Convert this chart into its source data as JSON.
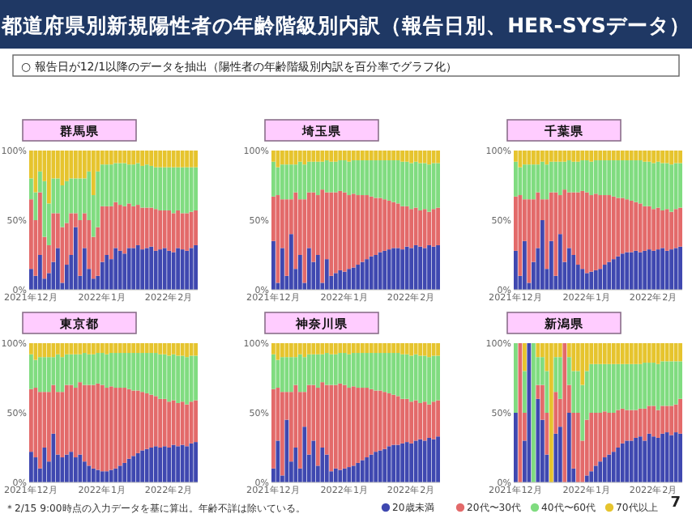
{
  "chart_data": [
    {
      "type": "other",
      "title": "都道府県別新規陽性者の年齢階級別内訳（報告日別、HER-SYSデータ）",
      "subtitle": "○ 報告日が12/1以降のデータを抽出（陽性者の年齢階級別内訳を百分率でグラフ化）",
      "annotations": [
        "＊2/15 9:00時点の入力データを基に算出。年齢不詳は除いている。",
        "7"
      ]
    },
    {
      "type": "bar",
      "title": "群馬県",
      "stacked": true,
      "ylim": [
        0,
        100
      ],
      "yticks": [
        {
          "value": 0,
          "label": "0%"
        },
        {
          "value": 50,
          "label": "50%"
        },
        {
          "value": 100,
          "label": "100%"
        }
      ],
      "categories": [
        "2021年12月",
        null,
        null,
        null,
        null,
        null,
        null,
        null,
        null,
        null,
        null,
        null,
        null,
        null,
        null,
        null,
        "2022年1月",
        null,
        null,
        null,
        null,
        null,
        null,
        null,
        null,
        null,
        null,
        null,
        null,
        null,
        null,
        "2022年2月",
        null,
        null,
        null,
        null,
        null,
        null
      ],
      "series": [
        {
          "color": "#3f48b0",
          "values": [
            15,
            10,
            25,
            8,
            12,
            20,
            30,
            5,
            18,
            25,
            45,
            10,
            30,
            15,
            8,
            10,
            20,
            25,
            22,
            30,
            28,
            26,
            30,
            30,
            32,
            29,
            30,
            31,
            28,
            29,
            30,
            28,
            27,
            30,
            29,
            28,
            30,
            32
          ]
        },
        {
          "color": "#e36a6a",
          "values": [
            50,
            40,
            45,
            30,
            20,
            35,
            25,
            40,
            30,
            30,
            10,
            40,
            25,
            35,
            30,
            35,
            40,
            35,
            38,
            33,
            33,
            34,
            32,
            30,
            29,
            30,
            29,
            28,
            30,
            28,
            27,
            29,
            28,
            27,
            26,
            27,
            26,
            25
          ]
        },
        {
          "color": "#80dc80",
          "values": [
            15,
            20,
            15,
            40,
            30,
            25,
            25,
            30,
            30,
            25,
            25,
            30,
            25,
            35,
            30,
            40,
            30,
            30,
            30,
            28,
            30,
            31,
            28,
            30,
            30,
            30,
            31,
            30,
            30,
            31,
            31,
            31,
            33,
            31,
            33,
            33,
            32,
            31
          ]
        },
        {
          "color": "#e6c42e",
          "values": [
            20,
            30,
            15,
            22,
            38,
            20,
            20,
            25,
            22,
            20,
            20,
            20,
            20,
            15,
            32,
            15,
            10,
            10,
            10,
            9,
            9,
            9,
            10,
            10,
            9,
            11,
            10,
            11,
            12,
            12,
            12,
            12,
            12,
            12,
            12,
            12,
            12,
            12
          ]
        }
      ]
    },
    {
      "type": "bar",
      "title": "埼玉県",
      "stacked": true,
      "ylim": [
        0,
        100
      ],
      "yticks": [
        {
          "value": 0,
          "label": "0%"
        },
        {
          "value": 50,
          "label": "50%"
        },
        {
          "value": 100,
          "label": "100%"
        }
      ],
      "categories": [
        "2021年12月",
        null,
        null,
        null,
        null,
        null,
        null,
        null,
        null,
        null,
        null,
        null,
        null,
        null,
        null,
        null,
        "2022年1月",
        null,
        null,
        null,
        null,
        null,
        null,
        null,
        null,
        null,
        null,
        null,
        null,
        null,
        null,
        "2022年2月",
        null,
        null,
        null,
        null,
        null,
        null
      ],
      "series": [
        {
          "color": "#3f48b0",
          "values": [
            35,
            5,
            30,
            10,
            40,
            15,
            25,
            5,
            30,
            20,
            25,
            5,
            22,
            10,
            12,
            14,
            13,
            15,
            16,
            18,
            20,
            22,
            24,
            25,
            27,
            28,
            29,
            30,
            30,
            29,
            31,
            30,
            32,
            31,
            30,
            32,
            31,
            32
          ]
        },
        {
          "color": "#e36a6a",
          "values": [
            32,
            63,
            35,
            55,
            25,
            55,
            40,
            60,
            40,
            50,
            43,
            67,
            48,
            60,
            58,
            57,
            57,
            53,
            53,
            50,
            48,
            46,
            43,
            41,
            39,
            37,
            35,
            33,
            32,
            31,
            29,
            28,
            27,
            26,
            28,
            24,
            27,
            27
          ]
        },
        {
          "color": "#80dc80",
          "values": [
            25,
            20,
            25,
            25,
            25,
            20,
            27,
            25,
            22,
            22,
            24,
            20,
            23,
            22,
            22,
            22,
            23,
            24,
            24,
            25,
            25,
            25,
            26,
            27,
            27,
            28,
            29,
            30,
            31,
            32,
            32,
            33,
            33,
            34,
            33,
            34,
            33,
            32
          ]
        },
        {
          "color": "#e6c42e",
          "values": [
            8,
            12,
            10,
            10,
            10,
            10,
            8,
            10,
            8,
            8,
            8,
            8,
            7,
            8,
            8,
            7,
            7,
            8,
            7,
            7,
            7,
            7,
            7,
            7,
            7,
            7,
            7,
            7,
            7,
            8,
            8,
            9,
            8,
            9,
            9,
            10,
            9,
            9
          ]
        }
      ]
    },
    {
      "type": "bar",
      "title": "千葉県",
      "stacked": true,
      "ylim": [
        0,
        100
      ],
      "yticks": [
        {
          "value": 0,
          "label": "0%"
        },
        {
          "value": 50,
          "label": "50%"
        },
        {
          "value": 100,
          "label": "100%"
        }
      ],
      "categories": [
        "2021年12月",
        null,
        null,
        null,
        null,
        null,
        null,
        null,
        null,
        null,
        null,
        null,
        null,
        null,
        null,
        null,
        "2022年1月",
        null,
        null,
        null,
        null,
        null,
        null,
        null,
        null,
        null,
        null,
        null,
        null,
        null,
        null,
        "2022年2月",
        null,
        null,
        null,
        null,
        null,
        null
      ],
      "series": [
        {
          "color": "#3f48b0",
          "values": [
            28,
            10,
            35,
            5,
            20,
            30,
            50,
            15,
            35,
            10,
            40,
            20,
            30,
            25,
            18,
            15,
            12,
            13,
            14,
            15,
            18,
            20,
            22,
            24,
            26,
            27,
            27,
            28,
            27,
            28,
            29,
            28,
            29,
            30,
            28,
            29,
            30,
            31
          ]
        },
        {
          "color": "#e36a6a",
          "values": [
            39,
            58,
            30,
            60,
            45,
            40,
            15,
            50,
            35,
            60,
            28,
            52,
            40,
            45,
            52,
            56,
            58,
            55,
            55,
            53,
            50,
            48,
            45,
            42,
            40,
            38,
            37,
            35,
            35,
            32,
            31,
            30,
            30,
            27,
            30,
            27,
            28,
            28
          ]
        },
        {
          "color": "#80dc80",
          "values": [
            25,
            20,
            25,
            25,
            25,
            20,
            27,
            25,
            22,
            22,
            24,
            20,
            23,
            22,
            22,
            22,
            23,
            24,
            24,
            25,
            25,
            25,
            26,
            27,
            27,
            28,
            29,
            30,
            31,
            32,
            32,
            33,
            33,
            34,
            33,
            34,
            33,
            32
          ]
        },
        {
          "color": "#e6c42e",
          "values": [
            8,
            12,
            10,
            10,
            10,
            10,
            8,
            10,
            8,
            8,
            8,
            8,
            7,
            8,
            8,
            7,
            7,
            8,
            7,
            7,
            7,
            7,
            7,
            7,
            7,
            7,
            7,
            7,
            7,
            8,
            8,
            9,
            8,
            9,
            9,
            10,
            9,
            9
          ]
        }
      ]
    },
    {
      "type": "bar",
      "title": "東京都",
      "stacked": true,
      "ylim": [
        0,
        100
      ],
      "yticks": [
        {
          "value": 0,
          "label": "0%"
        },
        {
          "value": 50,
          "label": "50%"
        },
        {
          "value": 100,
          "label": "100%"
        }
      ],
      "categories": [
        "2021年12月",
        null,
        null,
        null,
        null,
        null,
        null,
        null,
        null,
        null,
        null,
        null,
        null,
        null,
        null,
        null,
        "2022年1月",
        null,
        null,
        null,
        null,
        null,
        null,
        null,
        null,
        null,
        null,
        null,
        null,
        null,
        null,
        "2022年2月",
        null,
        null,
        null,
        null,
        null,
        null
      ],
      "series": [
        {
          "color": "#3f48b0",
          "values": [
            22,
            18,
            10,
            25,
            15,
            35,
            20,
            18,
            20,
            22,
            18,
            20,
            15,
            12,
            10,
            9,
            8,
            8,
            9,
            10,
            12,
            14,
            17,
            19,
            21,
            23,
            24,
            25,
            26,
            25,
            26,
            25,
            27,
            26,
            27,
            26,
            28,
            29
          ]
        },
        {
          "color": "#e36a6a",
          "values": [
            45,
            50,
            55,
            40,
            50,
            35,
            45,
            47,
            50,
            48,
            50,
            52,
            55,
            58,
            60,
            62,
            62,
            60,
            60,
            58,
            56,
            54,
            50,
            47,
            45,
            42,
            40,
            38,
            36,
            35,
            34,
            33,
            32,
            31,
            31,
            30,
            30,
            30
          ]
        },
        {
          "color": "#80dc80",
          "values": [
            25,
            20,
            25,
            25,
            25,
            20,
            27,
            25,
            22,
            22,
            24,
            20,
            23,
            22,
            22,
            22,
            23,
            24,
            24,
            25,
            25,
            25,
            26,
            27,
            27,
            28,
            29,
            30,
            31,
            32,
            32,
            33,
            33,
            34,
            33,
            34,
            33,
            32
          ]
        },
        {
          "color": "#e6c42e",
          "values": [
            8,
            12,
            10,
            10,
            10,
            10,
            8,
            10,
            8,
            8,
            8,
            8,
            7,
            8,
            8,
            7,
            7,
            8,
            7,
            7,
            7,
            7,
            7,
            7,
            7,
            7,
            7,
            7,
            7,
            8,
            8,
            9,
            8,
            9,
            9,
            10,
            9,
            9
          ]
        }
      ]
    },
    {
      "type": "bar",
      "title": "神奈川県",
      "stacked": true,
      "ylim": [
        0,
        100
      ],
      "yticks": [
        {
          "value": 0,
          "label": "0%"
        },
        {
          "value": 50,
          "label": "50%"
        },
        {
          "value": 100,
          "label": "100%"
        }
      ],
      "categories": [
        "2021年12月",
        null,
        null,
        null,
        null,
        null,
        null,
        null,
        null,
        null,
        null,
        null,
        null,
        null,
        null,
        null,
        "2022年1月",
        null,
        null,
        null,
        null,
        null,
        null,
        null,
        null,
        null,
        null,
        null,
        null,
        null,
        null,
        "2022年2月",
        null,
        null,
        null,
        null,
        null,
        null
      ],
      "series": [
        {
          "color": "#3f48b0",
          "values": [
            10,
            30,
            5,
            45,
            15,
            25,
            10,
            40,
            20,
            30,
            12,
            25,
            20,
            8,
            10,
            9,
            10,
            11,
            12,
            14,
            16,
            18,
            20,
            22,
            23,
            24,
            26,
            27,
            27,
            28,
            29,
            28,
            30,
            31,
            30,
            32,
            31,
            33
          ]
        },
        {
          "color": "#e36a6a",
          "values": [
            57,
            38,
            60,
            20,
            50,
            45,
            55,
            25,
            50,
            40,
            56,
            47,
            50,
            62,
            60,
            62,
            60,
            57,
            57,
            54,
            52,
            50,
            47,
            44,
            43,
            41,
            38,
            36,
            35,
            32,
            31,
            30,
            29,
            26,
            28,
            24,
            27,
            26
          ]
        },
        {
          "color": "#80dc80",
          "values": [
            25,
            20,
            25,
            25,
            25,
            20,
            27,
            25,
            22,
            22,
            24,
            20,
            23,
            22,
            22,
            22,
            23,
            24,
            24,
            25,
            25,
            25,
            26,
            27,
            27,
            28,
            29,
            30,
            31,
            32,
            32,
            33,
            33,
            34,
            33,
            34,
            33,
            32
          ]
        },
        {
          "color": "#e6c42e",
          "values": [
            8,
            12,
            10,
            10,
            10,
            10,
            8,
            10,
            8,
            8,
            8,
            8,
            7,
            8,
            8,
            7,
            7,
            8,
            7,
            7,
            7,
            7,
            7,
            7,
            7,
            7,
            7,
            7,
            7,
            8,
            8,
            9,
            8,
            9,
            9,
            10,
            9,
            9
          ]
        }
      ]
    },
    {
      "type": "bar",
      "title": "新潟県",
      "stacked": true,
      "legend": "bottom",
      "ylim": [
        0,
        100
      ],
      "yticks": [
        {
          "value": 0,
          "label": "0%"
        },
        {
          "value": 50,
          "label": "50%"
        },
        {
          "value": 100,
          "label": "100%"
        }
      ],
      "categories": [
        "2021年12月",
        null,
        null,
        null,
        null,
        null,
        null,
        null,
        null,
        null,
        null,
        null,
        null,
        null,
        null,
        null,
        "2022年1月",
        null,
        null,
        null,
        null,
        null,
        null,
        null,
        null,
        null,
        null,
        null,
        null,
        null,
        null,
        "2022年2月",
        null,
        null,
        null,
        null,
        null,
        null
      ],
      "series": [
        {
          "name": "20歳未満",
          "color": "#3f48b0",
          "values": [
            50,
            0,
            30,
            100,
            0,
            60,
            45,
            20,
            0,
            35,
            40,
            0,
            50,
            10,
            0,
            0,
            5,
            8,
            12,
            15,
            18,
            20,
            22,
            25,
            28,
            30,
            30,
            32,
            33,
            30,
            35,
            33,
            32,
            35,
            36,
            34,
            36,
            35
          ]
        },
        {
          "name": "20代〜30代",
          "color": "#e36a6a",
          "values": [
            0,
            100,
            20,
            0,
            0,
            10,
            25,
            30,
            0,
            30,
            20,
            100,
            20,
            40,
            50,
            30,
            40,
            42,
            38,
            35,
            33,
            30,
            28,
            27,
            25,
            22,
            22,
            20,
            20,
            23,
            20,
            22,
            20,
            20,
            19,
            21,
            20,
            25
          ]
        },
        {
          "name": "40代〜60代",
          "color": "#80dc80",
          "values": [
            50,
            0,
            30,
            0,
            100,
            20,
            20,
            30,
            0,
            25,
            30,
            0,
            20,
            30,
            30,
            40,
            35,
            35,
            35,
            35,
            34,
            35,
            35,
            33,
            32,
            33,
            33,
            33,
            32,
            33,
            31,
            31,
            33,
            32,
            32,
            32,
            31,
            27
          ]
        },
        {
          "name": "70代以上",
          "color": "#e6c42e",
          "values": [
            0,
            0,
            20,
            0,
            0,
            10,
            10,
            20,
            100,
            10,
            10,
            0,
            10,
            20,
            20,
            30,
            20,
            15,
            15,
            15,
            15,
            15,
            15,
            15,
            15,
            15,
            15,
            15,
            15,
            14,
            14,
            14,
            15,
            13,
            13,
            13,
            13,
            13
          ]
        }
      ]
    }
  ]
}
